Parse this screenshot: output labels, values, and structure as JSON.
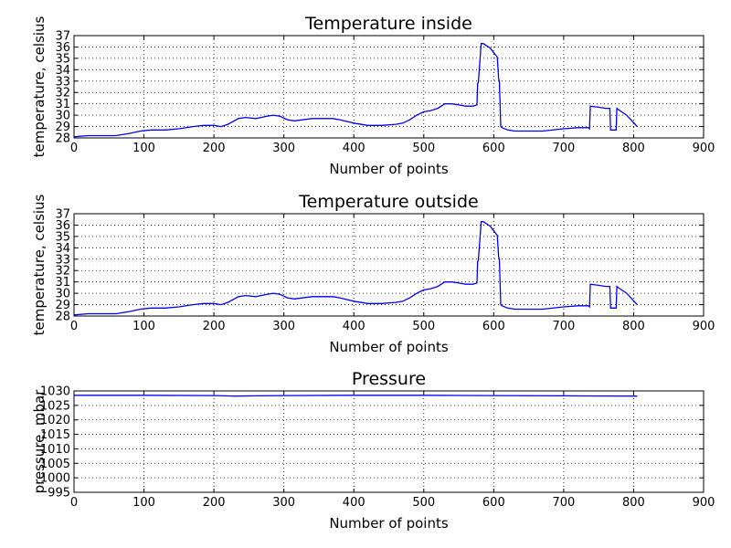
{
  "chart_data": [
    {
      "type": "line",
      "title": "Temperature inside",
      "xlabel": "Number of points",
      "ylabel": "temperature, celsius",
      "xlim": [
        0,
        900
      ],
      "ylim": [
        28,
        37
      ],
      "xticks": [
        0,
        100,
        200,
        300,
        400,
        500,
        600,
        700,
        800,
        900
      ],
      "yticks": [
        28,
        29,
        30,
        31,
        32,
        33,
        34,
        35,
        36,
        37
      ],
      "grid": true,
      "color": "#0000ff",
      "x": [
        0,
        20,
        60,
        80,
        95,
        110,
        130,
        150,
        170,
        185,
        200,
        210,
        220,
        235,
        245,
        260,
        275,
        285,
        295,
        305,
        315,
        340,
        370,
        380,
        400,
        420,
        440,
        460,
        470,
        480,
        490,
        500,
        510,
        520,
        530,
        540,
        550,
        560,
        570,
        576,
        577,
        578,
        582,
        585,
        590,
        595,
        600,
        605,
        607,
        608,
        610,
        612,
        620,
        630,
        650,
        670,
        700,
        720,
        735,
        737,
        738,
        750,
        760,
        766,
        767,
        770,
        775,
        776,
        778,
        790,
        805
      ],
      "y": [
        28.1,
        28.2,
        28.2,
        28.4,
        28.6,
        28.7,
        28.7,
        28.8,
        29.0,
        29.1,
        29.1,
        29.0,
        29.2,
        29.7,
        29.8,
        29.7,
        29.9,
        30.0,
        29.9,
        29.6,
        29.5,
        29.7,
        29.7,
        29.6,
        29.3,
        29.1,
        29.1,
        29.2,
        29.3,
        29.6,
        30.0,
        30.3,
        30.4,
        30.6,
        31.0,
        31.0,
        30.9,
        30.8,
        30.8,
        30.9,
        32.8,
        32.9,
        36.3,
        36.3,
        36.1,
        35.9,
        35.5,
        35.1,
        33.2,
        33.0,
        29.0,
        28.9,
        28.7,
        28.6,
        28.6,
        28.6,
        28.8,
        28.9,
        28.9,
        28.8,
        30.8,
        30.7,
        30.6,
        30.6,
        28.7,
        28.7,
        28.7,
        30.6,
        30.5,
        30.0,
        29.0
      ]
    },
    {
      "type": "line",
      "title": "Temperature outside",
      "xlabel": "Number of points",
      "ylabel": "temperature, celsius",
      "xlim": [
        0,
        900
      ],
      "ylim": [
        28,
        37
      ],
      "xticks": [
        0,
        100,
        200,
        300,
        400,
        500,
        600,
        700,
        800,
        900
      ],
      "yticks": [
        28,
        29,
        30,
        31,
        32,
        33,
        34,
        35,
        36,
        37
      ],
      "grid": true,
      "color": "#0000ff",
      "x": [
        0,
        20,
        60,
        80,
        95,
        110,
        130,
        150,
        170,
        185,
        200,
        210,
        220,
        235,
        245,
        260,
        275,
        285,
        295,
        305,
        315,
        340,
        370,
        380,
        400,
        420,
        440,
        460,
        470,
        480,
        490,
        500,
        510,
        520,
        530,
        540,
        550,
        560,
        570,
        576,
        577,
        578,
        582,
        585,
        590,
        595,
        600,
        605,
        607,
        608,
        610,
        612,
        620,
        630,
        650,
        670,
        700,
        720,
        735,
        737,
        738,
        750,
        760,
        766,
        767,
        770,
        775,
        776,
        778,
        790,
        805
      ],
      "y": [
        28.1,
        28.2,
        28.2,
        28.4,
        28.6,
        28.7,
        28.7,
        28.8,
        29.0,
        29.1,
        29.1,
        29.0,
        29.2,
        29.7,
        29.8,
        29.7,
        29.9,
        30.0,
        29.9,
        29.6,
        29.5,
        29.7,
        29.7,
        29.6,
        29.3,
        29.1,
        29.1,
        29.2,
        29.3,
        29.6,
        30.0,
        30.3,
        30.4,
        30.6,
        31.0,
        31.0,
        30.9,
        30.8,
        30.8,
        30.9,
        32.8,
        32.9,
        36.3,
        36.3,
        36.1,
        35.9,
        35.5,
        35.1,
        33.2,
        33.0,
        29.0,
        28.9,
        28.7,
        28.6,
        28.6,
        28.6,
        28.8,
        28.9,
        28.9,
        28.8,
        30.8,
        30.7,
        30.6,
        30.6,
        28.7,
        28.7,
        28.7,
        30.6,
        30.5,
        30.0,
        29.0
      ]
    },
    {
      "type": "line",
      "title": "Pressure",
      "xlabel": "Number of points",
      "ylabel": "pressure, mbar",
      "xlim": [
        0,
        900
      ],
      "ylim": [
        995,
        1030
      ],
      "xticks": [
        0,
        100,
        200,
        300,
        400,
        500,
        600,
        700,
        800,
        900
      ],
      "yticks": [
        995,
        1000,
        1005,
        1010,
        1015,
        1020,
        1025,
        1030
      ],
      "grid": true,
      "color": "#0000ff",
      "x": [
        0,
        100,
        200,
        230,
        260,
        300,
        400,
        500,
        600,
        700,
        805
      ],
      "y": [
        1028.5,
        1028.5,
        1028.4,
        1028.2,
        1028.3,
        1028.4,
        1028.5,
        1028.5,
        1028.4,
        1028.3,
        1028.2
      ]
    }
  ]
}
